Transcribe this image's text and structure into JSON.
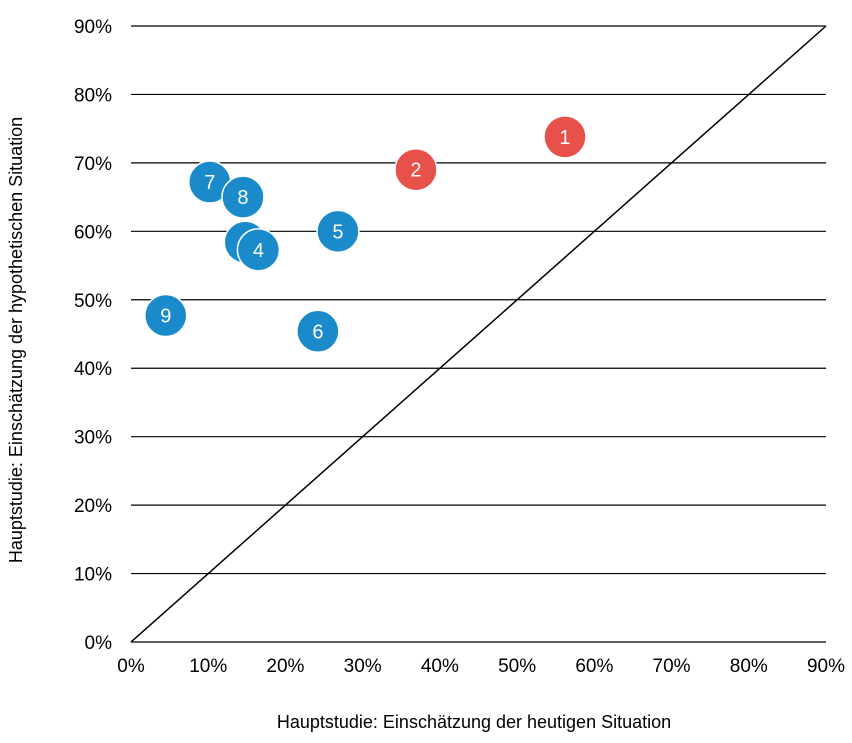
{
  "chart_data": {
    "type": "scatter",
    "xlabel": "Hauptstudie: Einschätzung der heutigen Situation",
    "ylabel": "Hauptstudie: Einschätzung der hypothetischen Situation",
    "xlim": [
      0,
      90
    ],
    "ylim": [
      0,
      90
    ],
    "x_ticks": [
      "0%",
      "10%",
      "20%",
      "30%",
      "40%",
      "50%",
      "60%",
      "70%",
      "80%",
      "90%"
    ],
    "y_ticks": [
      "0%",
      "10%",
      "20%",
      "30%",
      "40%",
      "50%",
      "60%",
      "70%",
      "80%",
      "90%"
    ],
    "grid": "horizontal",
    "diagonal_line": true,
    "points": [
      {
        "label": "1",
        "x": 56.2,
        "y": 73.8,
        "color": "#e8504a"
      },
      {
        "label": "2",
        "x": 36.9,
        "y": 69.0,
        "color": "#e8504a"
      },
      {
        "label": "3",
        "x": 14.8,
        "y": 58.4,
        "color": "#1a8acb"
      },
      {
        "label": "4",
        "x": 16.5,
        "y": 57.3,
        "color": "#1a8acb"
      },
      {
        "label": "5",
        "x": 26.8,
        "y": 60.0,
        "color": "#1a8acb"
      },
      {
        "label": "6",
        "x": 24.2,
        "y": 45.4,
        "color": "#1a8acb"
      },
      {
        "label": "7",
        "x": 10.2,
        "y": 67.2,
        "color": "#1a8acb"
      },
      {
        "label": "8",
        "x": 14.5,
        "y": 65.0,
        "color": "#1a8acb"
      },
      {
        "label": "9",
        "x": 4.5,
        "y": 47.7,
        "color": "#1a8acb"
      }
    ]
  }
}
